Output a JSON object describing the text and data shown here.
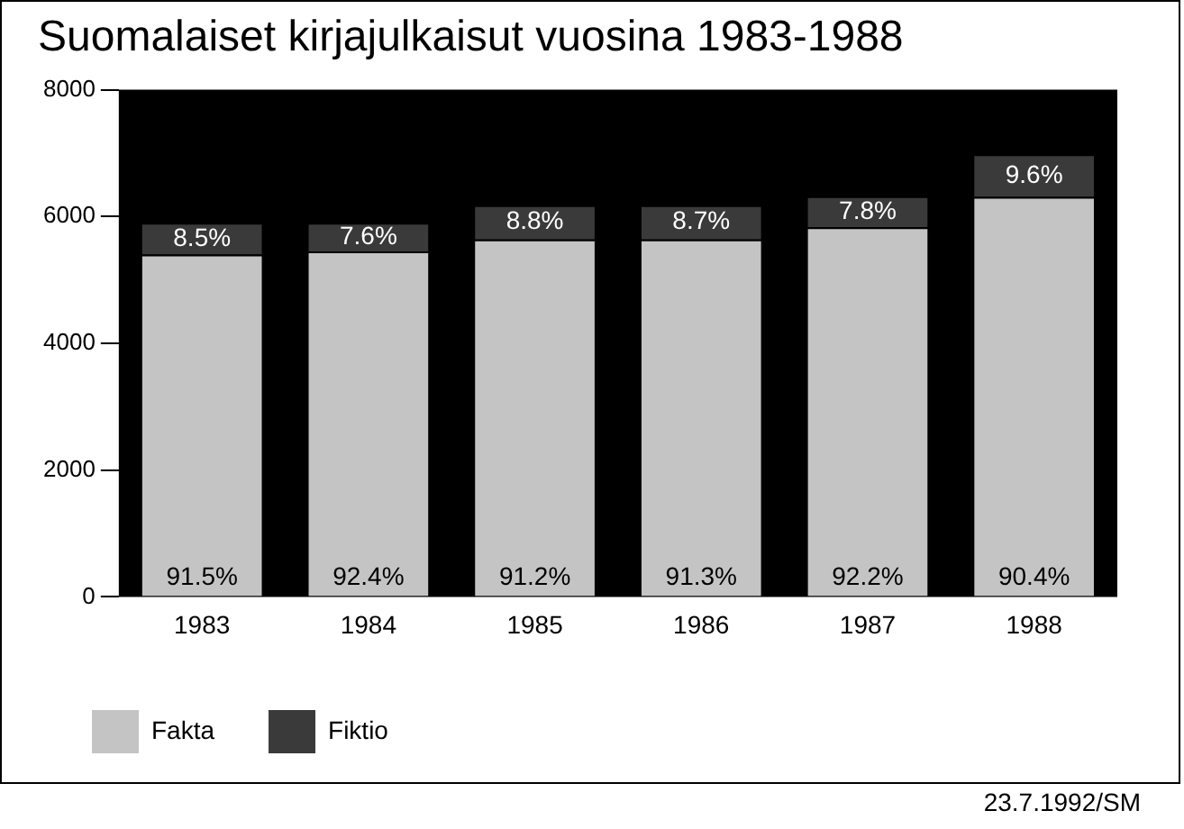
{
  "chart_data": {
    "type": "bar",
    "title": "Suomalaiset kirjajulkaisut vuosina 1983-1988",
    "categories": [
      "1983",
      "1984",
      "1985",
      "1986",
      "1987",
      "1988"
    ],
    "stacked": true,
    "series": [
      {
        "name": "Fakta",
        "color": "#c4c4c4",
        "values": [
          5400,
          5450,
          5640,
          5640,
          5830,
          6310
        ]
      },
      {
        "name": "Fiktio",
        "color": "#3a3a3a",
        "values": [
          500,
          450,
          540,
          540,
          490,
          670
        ]
      }
    ],
    "ylim": [
      0,
      8000
    ],
    "yticks": [
      0,
      2000,
      4000,
      6000,
      8000
    ],
    "grid": false,
    "legend": "bottom left",
    "annotations": [
      "91.5%",
      "92.4%",
      "91.2%",
      "91.3%",
      "92.2%",
      "90.4%",
      "8.5%",
      "7.6%",
      "8.8%",
      "8.7%",
      "7.8%",
      "9.6%",
      "23.7.1992/SM"
    ]
  }
}
